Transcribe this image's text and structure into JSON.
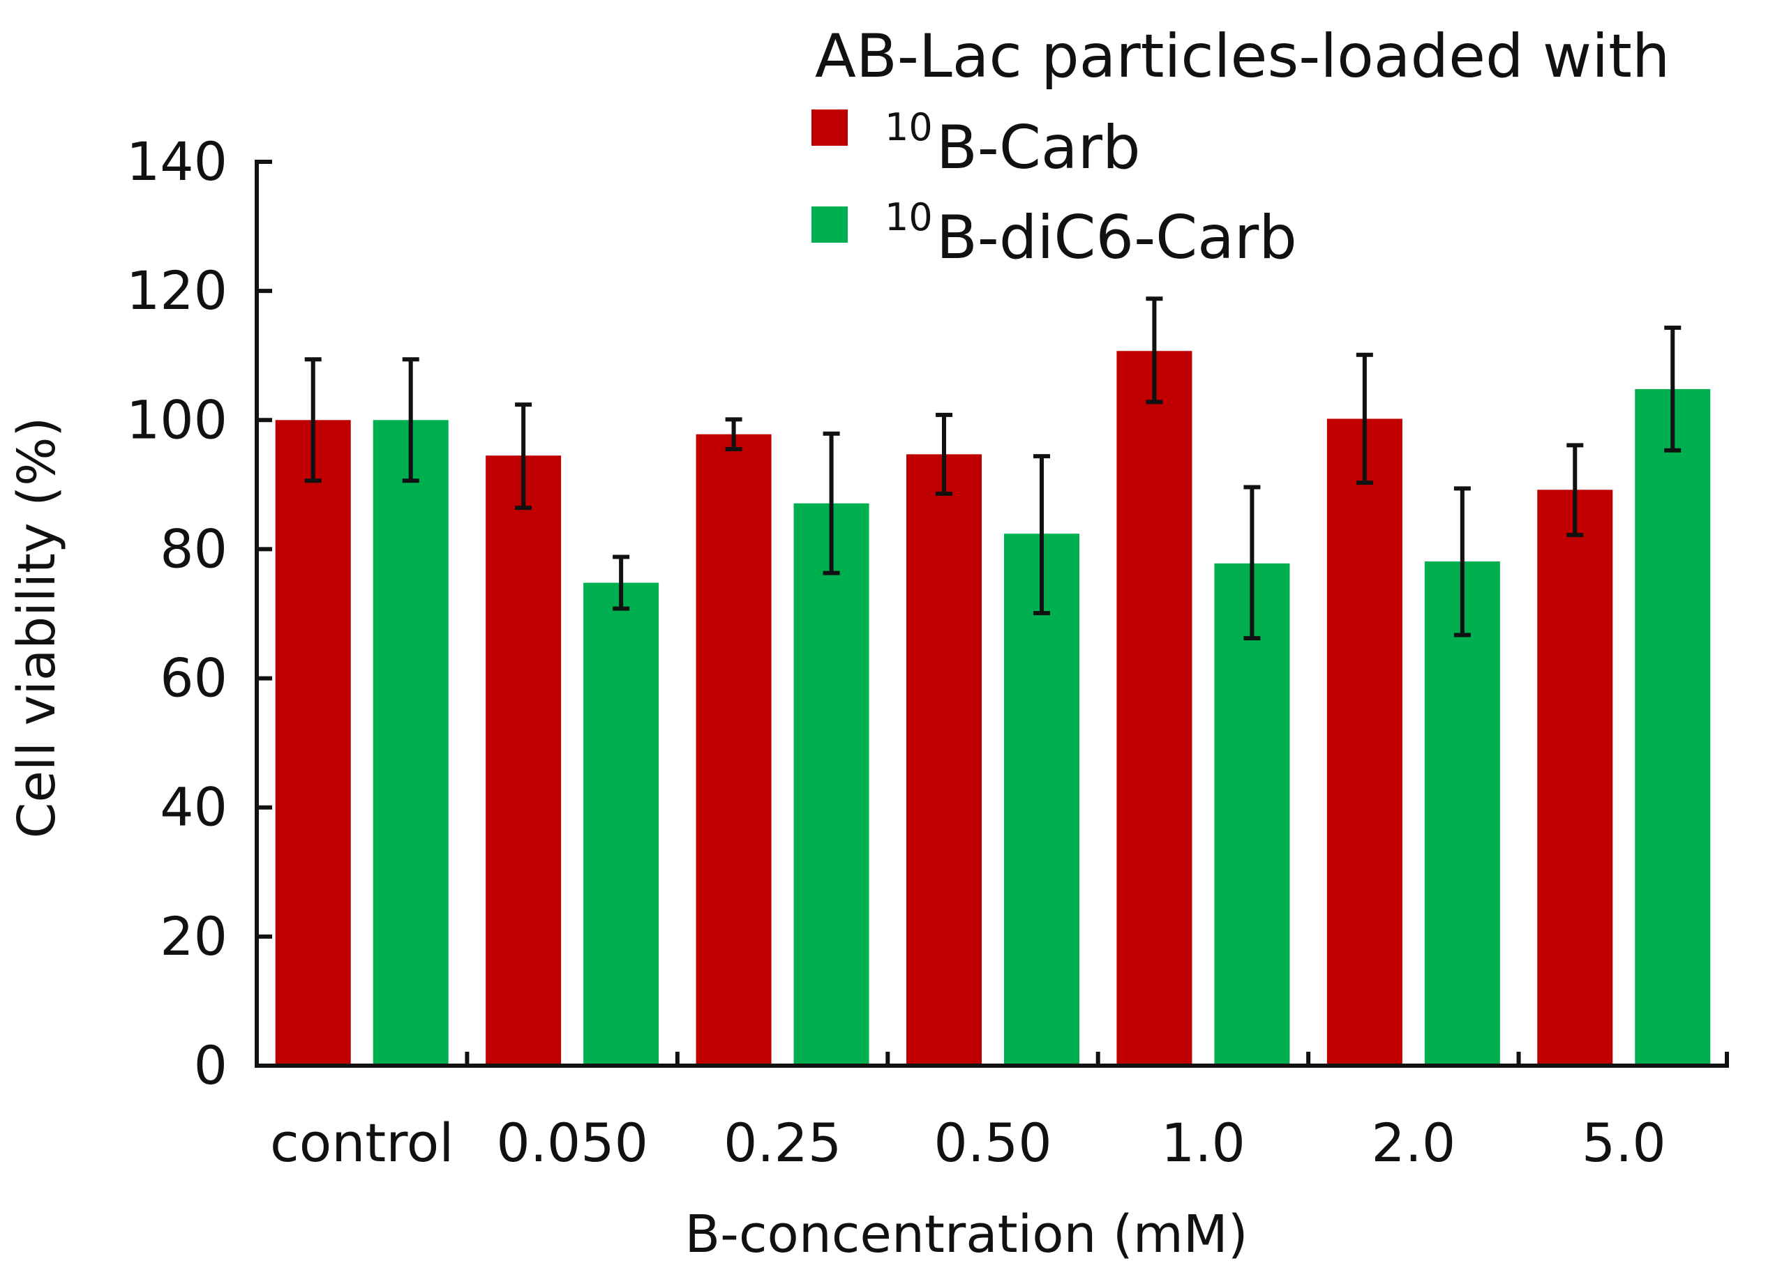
{
  "chart_data": {
    "type": "bar",
    "title": "",
    "legend": {
      "title": "AB-Lac particles-loaded with",
      "placement": "top-right"
    },
    "xlabel": "B-concentration (mM)",
    "ylabel": "Cell viability (%)",
    "ylim": [
      0,
      140
    ],
    "yticks": [
      "0",
      "20",
      "40",
      "60",
      "80",
      "100",
      "120",
      "140"
    ],
    "categories": [
      "control",
      "0.050",
      "0.25",
      "0.50",
      "1.0",
      "2.0",
      "5.0"
    ],
    "series": [
      {
        "name": "B-Carb",
        "superscript": "10",
        "color": "#c00000",
        "values": [
          100,
          94.5,
          97.8,
          94.7,
          110.7,
          100.2,
          89.2
        ],
        "error_low": [
          90.6,
          86.4,
          95.5,
          88.6,
          102.8,
          90.3,
          82.2
        ],
        "error_high": [
          109.4,
          102.4,
          100.1,
          100.8,
          118.8,
          110.1,
          96.1
        ]
      },
      {
        "name": "B-diC6-Carb",
        "superscript": "10",
        "color": "#00b050",
        "values": [
          100,
          74.8,
          87.1,
          82.4,
          77.8,
          78.1,
          104.8
        ],
        "error_low": [
          90.6,
          70.8,
          76.3,
          70.1,
          66.2,
          66.7,
          95.3
        ],
        "error_high": [
          109.4,
          78.8,
          97.9,
          94.4,
          89.6,
          89.4,
          114.3
        ]
      }
    ]
  }
}
